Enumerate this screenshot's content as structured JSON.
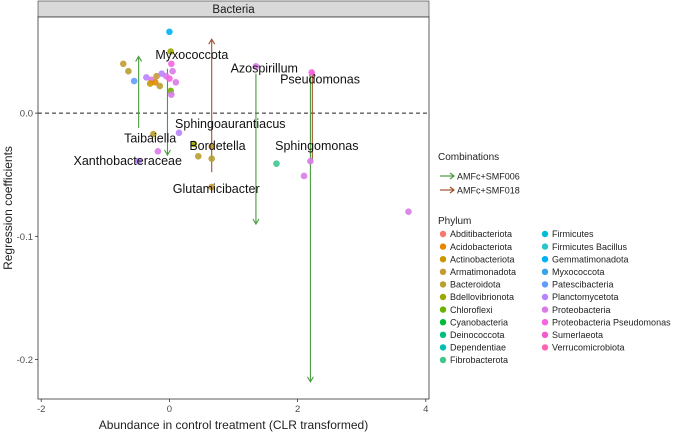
{
  "chart_data": {
    "type": "scatter",
    "facet_label": "Bacteria",
    "xlabel": "Abundance in control treatment (CLR transformed)",
    "ylabel": "Regression coefficients",
    "xlim": [
      -2.05,
      4.05
    ],
    "ylim": [
      -0.232,
      0.078
    ],
    "x_ticks": [
      -2,
      0,
      2,
      4
    ],
    "y_ticks": [
      0.0,
      -0.1,
      -0.2
    ],
    "y_tick_labels": [
      "0.0",
      "-0.1",
      "-0.2"
    ],
    "reference_line_y": 0,
    "legend_combinations_title": "Combinations",
    "combinations": [
      {
        "name": "AMFc+SMF006",
        "color": "#4a9b3f"
      },
      {
        "name": "AMFc+SMF018",
        "color": "#a0522d"
      }
    ],
    "legend_phylum_title": "Phylum",
    "phyla": [
      {
        "name": "Abditibacteriota",
        "color": "#f8766d"
      },
      {
        "name": "Acidobacteriota",
        "color": "#e58700"
      },
      {
        "name": "Actinobacteriota",
        "color": "#c99800"
      },
      {
        "name": "Armatimonadota",
        "color": "#c59a33"
      },
      {
        "name": "Bacteroidota",
        "color": "#b8a030"
      },
      {
        "name": "Bdellovibrionota",
        "color": "#9ca700"
      },
      {
        "name": "Chloroflexi",
        "color": "#6bb100"
      },
      {
        "name": "Cyanobacteria",
        "color": "#00ba38"
      },
      {
        "name": "Deinococcota",
        "color": "#00bf7d"
      },
      {
        "name": "Dependentiae",
        "color": "#00c0af"
      },
      {
        "name": "Fibrobacterota",
        "color": "#3fc68f"
      },
      {
        "name": "Firmicutes",
        "color": "#00bcd8"
      },
      {
        "name": "Firmicutes Bacillus",
        "color": "#2ec4cc"
      },
      {
        "name": "Gemmatimonadota",
        "color": "#00b0f6"
      },
      {
        "name": "Myxococcota",
        "color": "#3aa3e8"
      },
      {
        "name": "Patescibacteria",
        "color": "#619cff"
      },
      {
        "name": "Planctomycetota",
        "color": "#b983ff"
      },
      {
        "name": "Proteobacteria",
        "color": "#d97ae8"
      },
      {
        "name": "Proteobacteria Pseudomonas",
        "color": "#f564e3"
      },
      {
        "name": "Sumerlaeota",
        "color": "#f25acd"
      },
      {
        "name": "Verrucomicrobiota",
        "color": "#ff64b0"
      }
    ],
    "arrows": [
      {
        "combination": "AMFc+SMF006",
        "x": -0.48,
        "y_from": -0.012,
        "y_to": 0.046
      },
      {
        "combination": "AMFc+SMF006",
        "x": -0.03,
        "y_from": 0.036,
        "y_to": -0.034
      },
      {
        "combination": "AMFc+SMF018",
        "x": 0.66,
        "y_from": -0.048,
        "y_to": 0.06
      },
      {
        "combination": "AMFc+SMF006",
        "x": 1.35,
        "y_from": 0.032,
        "y_to": -0.09
      },
      {
        "combination": "AMFc+SMF006",
        "x": 2.2,
        "y_from": 0.03,
        "y_to": -0.218
      },
      {
        "combination": "AMFc+SMF018",
        "x": 2.23,
        "y_from": -0.038,
        "y_to": 0.034
      }
    ],
    "points": [
      {
        "x": 0.0,
        "y": 0.066,
        "phylum": "Gemmatimonadota"
      },
      {
        "x": 0.02,
        "y": 0.05,
        "phylum": "Bdellovibrionota"
      },
      {
        "x": -0.72,
        "y": 0.04,
        "phylum": "Armatimonadota"
      },
      {
        "x": -0.64,
        "y": 0.034,
        "phylum": "Bacteroidota"
      },
      {
        "x": -0.55,
        "y": 0.026,
        "phylum": "Patescibacteria"
      },
      {
        "x": -0.36,
        "y": 0.029,
        "phylum": "Planctomycetota"
      },
      {
        "x": -0.28,
        "y": 0.027,
        "phylum": "Proteobacteria"
      },
      {
        "x": -0.2,
        "y": 0.03,
        "phylum": "Armatimonadota"
      },
      {
        "x": -0.12,
        "y": 0.032,
        "phylum": "Planctomycetota"
      },
      {
        "x": -0.05,
        "y": 0.03,
        "phylum": "Proteobacteria"
      },
      {
        "x": -0.3,
        "y": 0.024,
        "phylum": "Actinobacteriota"
      },
      {
        "x": -0.22,
        "y": 0.025,
        "phylum": "Acidobacteriota"
      },
      {
        "x": -0.15,
        "y": 0.022,
        "phylum": "Bacteroidota"
      },
      {
        "x": 0.03,
        "y": 0.04,
        "phylum": "Proteobacteria Pseudomonas"
      },
      {
        "x": 0.05,
        "y": 0.034,
        "phylum": "Proteobacteria"
      },
      {
        "x": 0.0,
        "y": 0.028,
        "phylum": "Proteobacteria Pseudomonas"
      },
      {
        "x": 0.02,
        "y": 0.018,
        "phylum": "Chloroflexi"
      },
      {
        "x": 0.1,
        "y": 0.025,
        "phylum": "Proteobacteria"
      },
      {
        "x": 0.03,
        "y": 0.015,
        "phylum": "Proteobacteria"
      },
      {
        "x": -0.25,
        "y": -0.017,
        "phylum": "Bacteroidota"
      },
      {
        "x": 0.15,
        "y": -0.016,
        "phylum": "Planctomycetota"
      },
      {
        "x": -0.18,
        "y": -0.031,
        "phylum": "Proteobacteria"
      },
      {
        "x": 0.38,
        "y": -0.025,
        "phylum": "Bdellovibrionota"
      },
      {
        "x": 0.45,
        "y": -0.035,
        "phylum": "Bacteroidota"
      },
      {
        "x": 0.66,
        "y": -0.027,
        "phylum": "Armatimonadota"
      },
      {
        "x": 0.66,
        "y": -0.037,
        "phylum": "Bacteroidota"
      },
      {
        "x": -0.48,
        "y": -0.039,
        "phylum": "Planctomycetota"
      },
      {
        "x": 0.66,
        "y": -0.06,
        "phylum": "Armatimonadota"
      },
      {
        "x": 1.67,
        "y": -0.041,
        "phylum": "Fibrobacterota"
      },
      {
        "x": 2.2,
        "y": -0.039,
        "phylum": "Proteobacteria"
      },
      {
        "x": 2.1,
        "y": -0.051,
        "phylum": "Proteobacteria"
      },
      {
        "x": 3.73,
        "y": -0.08,
        "phylum": "Proteobacteria"
      },
      {
        "x": 1.35,
        "y": 0.038,
        "phylum": "Proteobacteria"
      },
      {
        "x": 2.22,
        "y": 0.033,
        "phylum": "Proteobacteria Pseudomonas"
      }
    ],
    "labels": [
      {
        "text": "Myxococcota",
        "x": 0.35,
        "y": 0.044
      },
      {
        "text": "Azospirillum",
        "x": 1.48,
        "y": 0.033
      },
      {
        "text": "Pseudomonas",
        "x": 2.35,
        "y": 0.024
      },
      {
        "text": "Taibaiella",
        "x": -0.3,
        "y": -0.024
      },
      {
        "text": "Sphingoaurantiacus",
        "x": 0.95,
        "y": -0.012
      },
      {
        "text": "Bordetella",
        "x": 0.75,
        "y": -0.03
      },
      {
        "text": "Sphingomonas",
        "x": 2.3,
        "y": -0.03
      },
      {
        "text": "Xanthobacteraceae",
        "x": -0.65,
        "y": -0.042
      },
      {
        "text": "Glutamicibacter",
        "x": 0.73,
        "y": -0.065
      }
    ]
  }
}
